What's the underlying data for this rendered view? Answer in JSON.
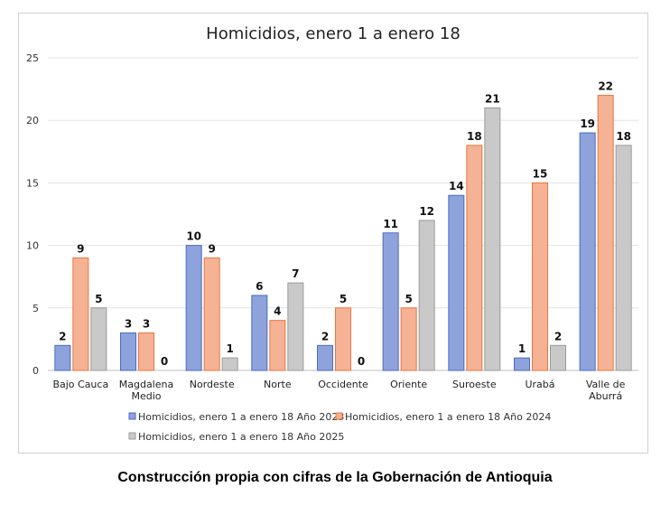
{
  "caption": "Construcción propia con cifras de la Gobernación de Antioquia",
  "chart_data": {
    "type": "bar",
    "title": "Homicidios, enero 1 a enero 18",
    "xlabel": "",
    "ylabel": "",
    "ylim": [
      0,
      25
    ],
    "yticks": [
      0,
      5,
      10,
      15,
      20,
      25
    ],
    "grid": true,
    "legend_position": "bottom",
    "categories": [
      [
        "Bajo Cauca"
      ],
      [
        "Magdalena",
        "Medio"
      ],
      [
        "Nordeste"
      ],
      [
        "Norte"
      ],
      [
        "Occidente"
      ],
      [
        "Oriente"
      ],
      [
        "Suroeste"
      ],
      [
        "Urabá"
      ],
      [
        "Valle de",
        "Aburrá"
      ]
    ],
    "series": [
      {
        "name": "Homicidios, enero 1 a enero 18 Año 2023",
        "color": "#8ea3dc",
        "stroke": "#4a6bc4",
        "values": [
          2,
          3,
          10,
          6,
          2,
          11,
          14,
          1,
          19
        ]
      },
      {
        "name": "Homicidios, enero 1 a enero 18 Año 2024",
        "color": "#f5b294",
        "stroke": "#e8773f",
        "values": [
          9,
          3,
          9,
          4,
          5,
          5,
          18,
          15,
          22
        ]
      },
      {
        "name": "Homicidios, enero 1 a enero 18 Año 2025",
        "color": "#c9c9c9",
        "stroke": "#9a9a9a",
        "values": [
          5,
          0,
          1,
          7,
          0,
          12,
          21,
          2,
          18
        ]
      }
    ]
  }
}
